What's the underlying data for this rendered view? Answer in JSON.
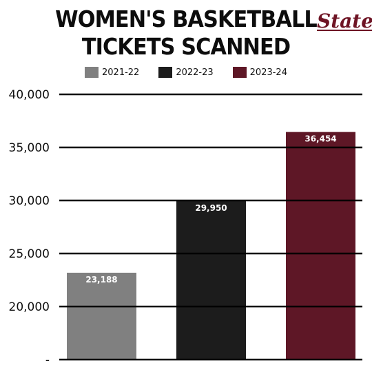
{
  "logo_text": "State",
  "chart_data": {
    "type": "bar",
    "title": [
      "WOMEN'S BASKETBALL",
      "TICKETS SCANNED"
    ],
    "categories": [
      "2021-22",
      "2022-23",
      "2023-24"
    ],
    "values": [
      23188,
      29950,
      36454
    ],
    "data_labels": [
      "23,188",
      "29,950",
      "36,454"
    ],
    "colors": [
      "#808080",
      "#1c1c1c",
      "#5e1726"
    ],
    "yticks": [
      {
        "value": 40000,
        "label": "40,000"
      },
      {
        "value": 35000,
        "label": "35,000"
      },
      {
        "value": 30000,
        "label": "30,000"
      },
      {
        "value": 25000,
        "label": "25,000"
      },
      {
        "value": 20000,
        "label": "20,000"
      },
      {
        "value": 15000,
        "label": "-"
      }
    ],
    "ylim": [
      15000,
      40000
    ],
    "grid": true,
    "legend": "top-center"
  }
}
